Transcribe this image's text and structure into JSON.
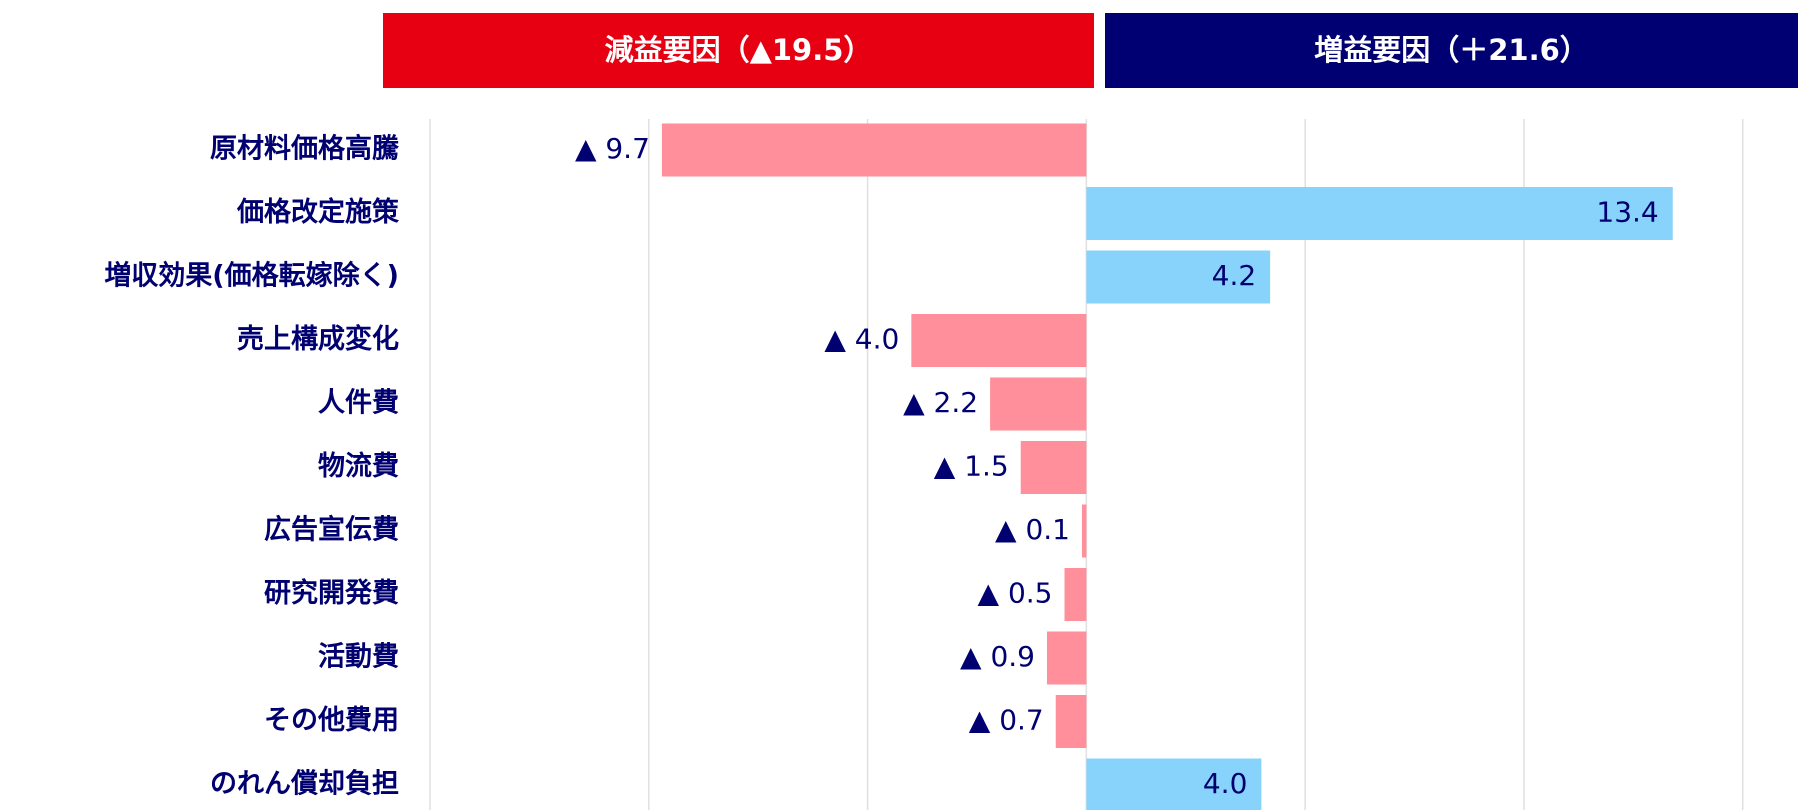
{
  "chart_data": {
    "type": "bar",
    "orientation": "horizontal",
    "headers": [
      {
        "text": "減益要因（▲19.5）",
        "color": "#e60012"
      },
      {
        "text": "増益要因（＋21.6）",
        "color": "#000073"
      }
    ],
    "categories": [
      "原材料価格高騰",
      "価格改定施策",
      "増収効果(価格転嫁除く)",
      "売上構成変化",
      "人件費",
      "物流費",
      "広告宣伝費",
      "研究開発費",
      "活動費",
      "その他費用",
      "のれん償却負担"
    ],
    "values": [
      -9.7,
      13.4,
      4.2,
      -4.0,
      -2.2,
      -1.5,
      -0.1,
      -0.5,
      -0.9,
      -0.7,
      4.0
    ],
    "value_labels": [
      "▲ 9.7",
      "13.4",
      "4.2",
      "▲ 4.0",
      "▲ 2.2",
      "▲ 1.5",
      "▲ 0.1",
      "▲ 0.5",
      "▲ 0.9",
      "▲ 0.7",
      "4.0"
    ],
    "negative_color": "#ff8f9a",
    "positive_color": "#87d3fb",
    "xlim": [
      -15,
      15.6
    ],
    "xticks": [
      -15,
      -10,
      -5,
      0,
      5,
      10,
      15
    ],
    "grid": true
  }
}
